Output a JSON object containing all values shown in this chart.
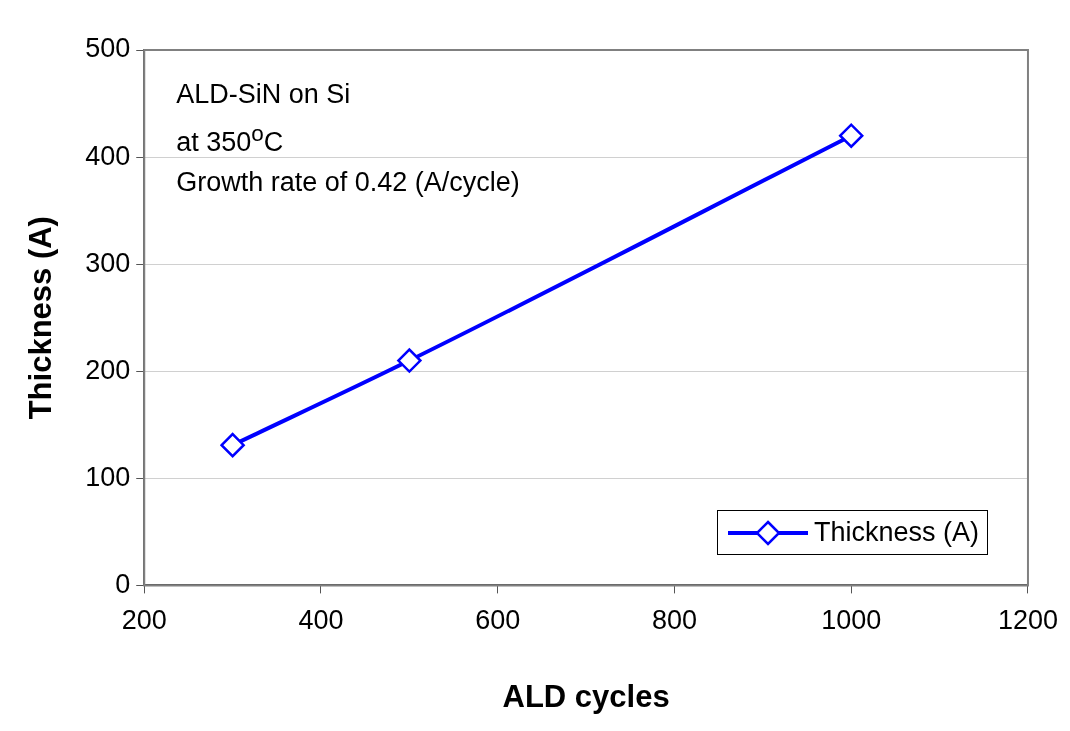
{
  "chart_data": {
    "type": "line",
    "xlabel": "ALD cycles",
    "ylabel": "Thickness (A)",
    "x": [
      300,
      500,
      1000
    ],
    "series": [
      {
        "name": "Thickness (A)",
        "color": "#0000ff",
        "values": [
          131,
          210,
          420
        ]
      }
    ],
    "xlim": [
      200,
      1200
    ],
    "xticks": [
      200,
      400,
      600,
      800,
      1000,
      1200
    ],
    "ylim": [
      0,
      500
    ],
    "yticks": [
      0,
      100,
      200,
      300,
      400,
      500
    ],
    "grid": "y",
    "legend": "bottom right",
    "marker": "diamond",
    "line_style": "solid",
    "annotations": [
      "ALD-SiN on Si",
      "at 350$^{o}$C",
      "Growth rate of 0.42 (A/cycle)"
    ]
  }
}
